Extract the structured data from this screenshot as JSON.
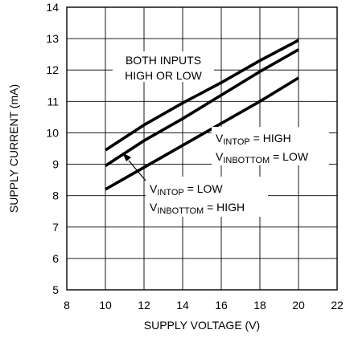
{
  "chart_data": {
    "type": "line",
    "xlabel": "SUPPLY VOLTAGE (V)",
    "ylabel": "SUPPLY CURRENT (mA)",
    "xlim": [
      8,
      22
    ],
    "ylim": [
      5,
      14
    ],
    "xticks": [
      8,
      10,
      12,
      14,
      16,
      18,
      20,
      22
    ],
    "yticks": [
      5,
      6,
      7,
      8,
      9,
      10,
      11,
      12,
      13,
      14
    ],
    "grid": true,
    "series": [
      {
        "x": [
          10,
          12,
          14,
          16,
          18,
          20
        ],
        "values": [
          9.45,
          10.25,
          10.95,
          11.6,
          12.3,
          12.95
        ]
      },
      {
        "x": [
          10,
          12,
          14,
          16,
          18,
          20
        ],
        "values": [
          8.95,
          9.75,
          10.45,
          11.2,
          11.95,
          12.65
        ]
      },
      {
        "x": [
          10,
          12,
          14,
          16,
          18,
          20
        ],
        "values": [
          8.2,
          8.9,
          9.6,
          10.3,
          11.0,
          11.75
        ]
      }
    ],
    "annotations": {
      "both_line1": "BOTH INPUTS",
      "both_line2": "HIGH OR LOW",
      "v": "V",
      "sub_intop": "INTOP",
      "sub_inbottom": "INBOTTOM",
      "eq_high": " = HIGH",
      "eq_low": " = LOW"
    }
  }
}
